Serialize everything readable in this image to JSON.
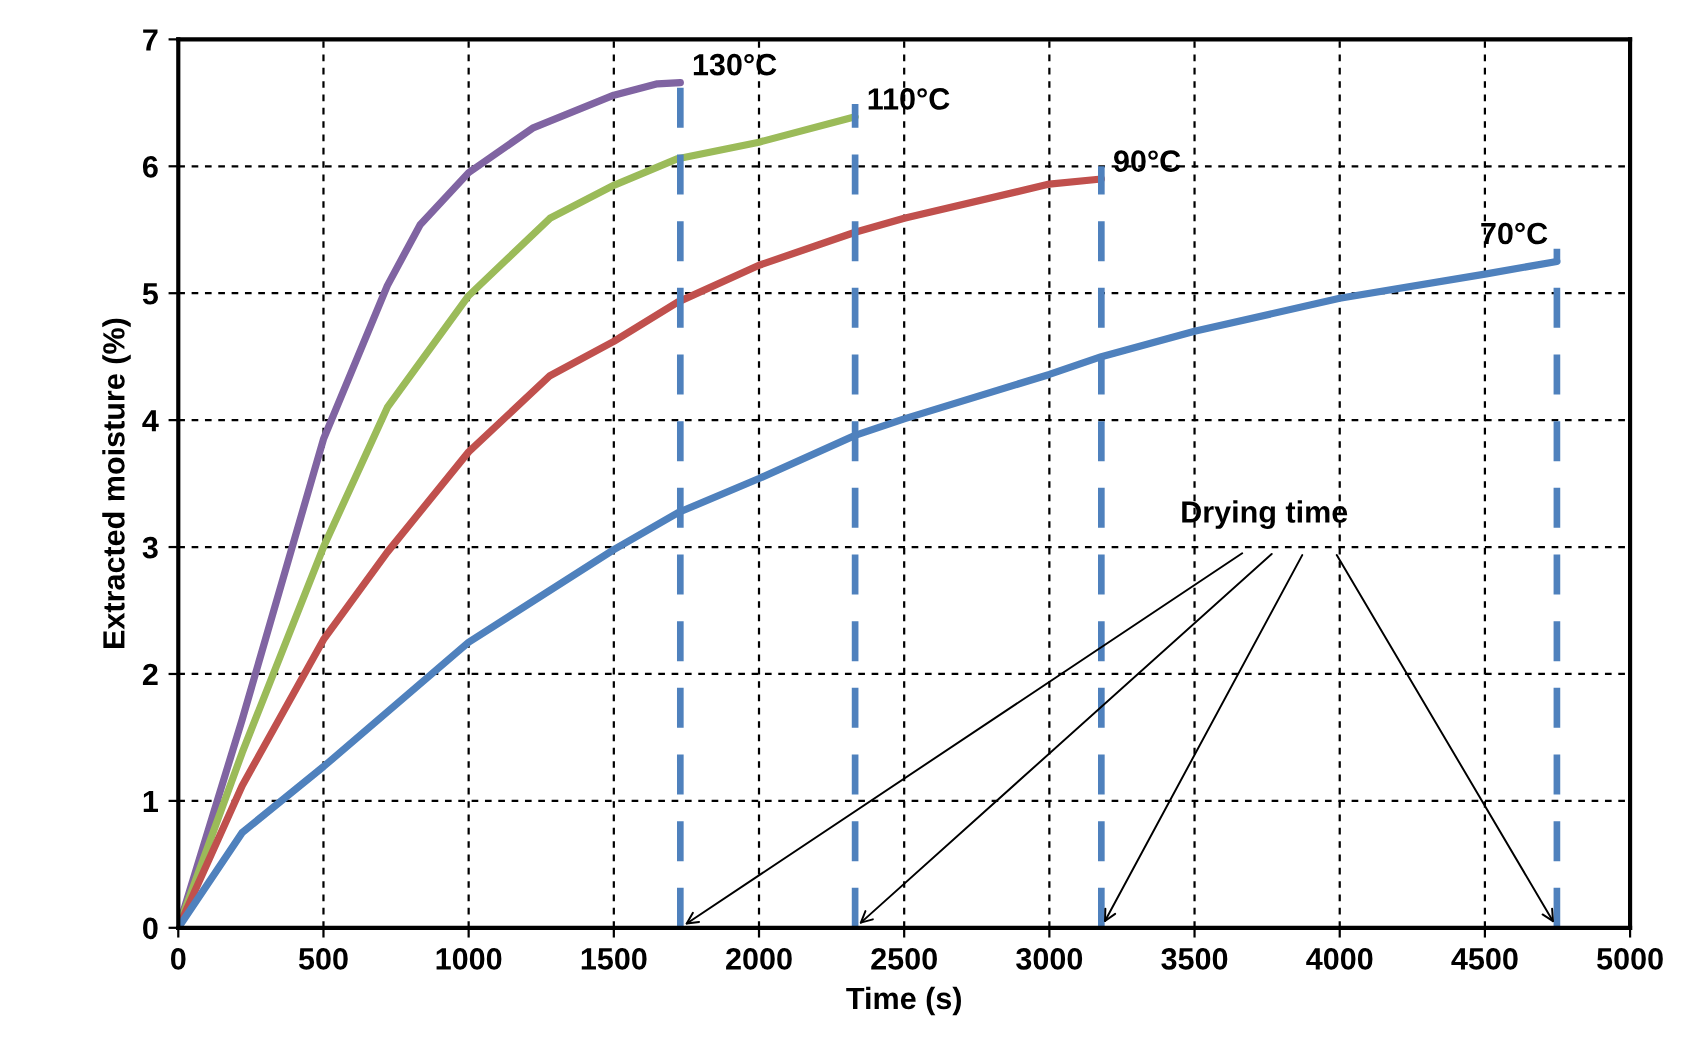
{
  "chart_data": {
    "type": "line",
    "xlabel": "Time (s)",
    "ylabel": "Extracted moisture (%)",
    "xlim": [
      0,
      5000
    ],
    "xticks": [
      0,
      500,
      1000,
      1500,
      2000,
      2500,
      3000,
      3500,
      4000,
      4500,
      5000
    ],
    "ylim": [
      0,
      7
    ],
    "yticks": [
      0,
      1,
      2,
      3,
      4,
      5,
      6,
      7
    ],
    "grid": true,
    "line_style": "solid",
    "marker": "none",
    "series": [
      {
        "name": "130°C",
        "color": "#8064a2",
        "x": [
          0,
          220,
          500,
          720,
          833,
          1000,
          1220,
          1500,
          1650,
          1729
        ],
        "values": [
          0,
          1.64,
          3.85,
          5.06,
          5.54,
          5.95,
          6.3,
          6.56,
          6.65,
          6.66
        ]
      },
      {
        "name": "110°C",
        "color": "#9bbb59",
        "x": [
          0,
          220,
          500,
          720,
          1000,
          1280,
          1500,
          1720,
          2000,
          2331
        ],
        "values": [
          0,
          1.38,
          3.0,
          4.1,
          4.98,
          5.59,
          5.85,
          6.06,
          6.19,
          6.39
        ]
      },
      {
        "name": "90°C",
        "color": "#c0504d",
        "x": [
          0,
          220,
          500,
          720,
          1000,
          1280,
          1500,
          1720,
          2000,
          2331,
          2500,
          3000,
          3179
        ],
        "values": [
          0,
          1.12,
          2.27,
          2.96,
          3.75,
          4.35,
          4.62,
          4.93,
          5.22,
          5.48,
          5.59,
          5.86,
          5.9
        ]
      },
      {
        "name": "70°C",
        "color": "#4f81bd",
        "x": [
          0,
          220,
          500,
          1000,
          1500,
          1720,
          2000,
          2331,
          2500,
          3000,
          3179,
          3500,
          4000,
          4500,
          4748
        ],
        "values": [
          0,
          0.75,
          1.27,
          2.25,
          2.98,
          3.27,
          3.54,
          3.88,
          4.01,
          4.36,
          4.5,
          4.7,
          4.96,
          5.15,
          5.25
        ]
      }
    ],
    "ref_lines": [
      {
        "axis": "x",
        "value": 1729,
        "color": "#4f81bd",
        "line_style": "dashed"
      },
      {
        "axis": "x",
        "value": 2331,
        "color": "#4f81bd",
        "line_style": "dashed"
      },
      {
        "axis": "x",
        "value": 3179,
        "color": "#4f81bd",
        "line_style": "dashed"
      },
      {
        "axis": "x",
        "value": 4748,
        "color": "#4f81bd",
        "line_style": "dashed"
      }
    ],
    "annotations": [
      {
        "text": "Drying time",
        "x": 1729,
        "y": 0
      }
    ]
  }
}
